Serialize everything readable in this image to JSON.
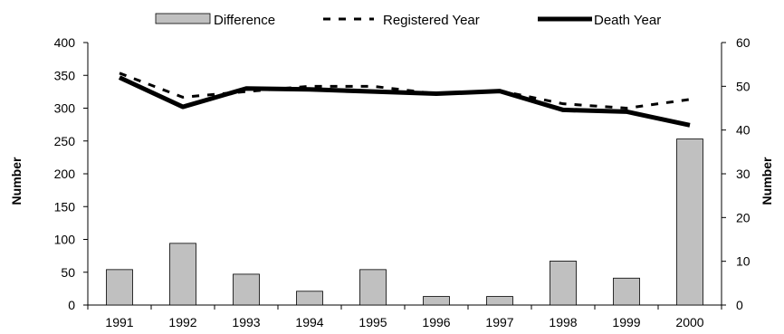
{
  "chart_data": {
    "type": "bar+line",
    "categories": [
      "1991",
      "1992",
      "1993",
      "1994",
      "1995",
      "1996",
      "1997",
      "1998",
      "1999",
      "2000"
    ],
    "series": [
      {
        "name": "Difference",
        "type": "bar",
        "axis": "left",
        "color": "#c0c0c0",
        "values": [
          54,
          94,
          47,
          21,
          54,
          13,
          13,
          67,
          41,
          253
        ]
      },
      {
        "name": "Registered Year",
        "type": "line",
        "style": "dashed",
        "axis": "right",
        "color": "#000000",
        "values": [
          53,
          47.5,
          48.8,
          50,
          50,
          48.3,
          49,
          46,
          45,
          47
        ]
      },
      {
        "name": "Death Year",
        "type": "line",
        "style": "solid",
        "axis": "right",
        "color": "#000000",
        "values": [
          52,
          45.3,
          49.5,
          49.3,
          48.8,
          48.3,
          48.9,
          44.6,
          44.2,
          41.1
        ]
      }
    ],
    "y_left": {
      "label": "Number",
      "ylim": [
        0,
        400
      ],
      "ticks": [
        "0",
        "50",
        "100",
        "150",
        "200",
        "250",
        "300",
        "350",
        "400"
      ]
    },
    "y_right": {
      "label": "Number",
      "ylim": [
        0,
        60
      ],
      "ticks": [
        "0",
        "10",
        "20",
        "30",
        "40",
        "50",
        "60"
      ]
    },
    "legend_position": "top",
    "grid": false
  }
}
